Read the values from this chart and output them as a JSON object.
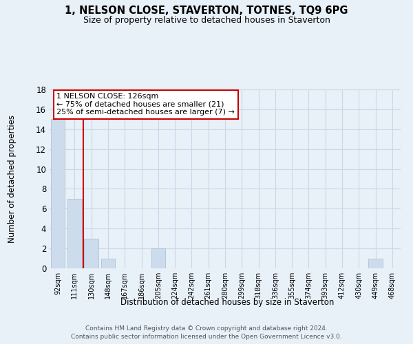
{
  "title": "1, NELSON CLOSE, STAVERTON, TOTNES, TQ9 6PG",
  "subtitle": "Size of property relative to detached houses in Staverton",
  "xlabel": "Distribution of detached houses by size in Staverton",
  "ylabel": "Number of detached properties",
  "bin_labels": [
    "92sqm",
    "111sqm",
    "130sqm",
    "148sqm",
    "167sqm",
    "186sqm",
    "205sqm",
    "224sqm",
    "242sqm",
    "261sqm",
    "280sqm",
    "299sqm",
    "318sqm",
    "336sqm",
    "355sqm",
    "374sqm",
    "393sqm",
    "412sqm",
    "430sqm",
    "449sqm",
    "468sqm"
  ],
  "bar_values": [
    15,
    7,
    3,
    1,
    0,
    0,
    2,
    0,
    0,
    0,
    0,
    0,
    0,
    0,
    0,
    0,
    0,
    0,
    0,
    1,
    0
  ],
  "bar_color": "#ccdcec",
  "bar_edge_color": "#aabbcc",
  "grid_color": "#c8d8e8",
  "background_color": "#e8f0f8",
  "vline_x_index": 2,
  "vline_color": "#cc0000",
  "annotation_text": "1 NELSON CLOSE: 126sqm\n← 75% of detached houses are smaller (21)\n25% of semi-detached houses are larger (7) →",
  "annotation_box_facecolor": "#ffffff",
  "annotation_box_edgecolor": "#cc0000",
  "ylim": [
    0,
    18
  ],
  "yticks": [
    0,
    2,
    4,
    6,
    8,
    10,
    12,
    14,
    16,
    18
  ],
  "footer_line1": "Contains HM Land Registry data © Crown copyright and database right 2024.",
  "footer_line2": "Contains public sector information licensed under the Open Government Licence v3.0."
}
